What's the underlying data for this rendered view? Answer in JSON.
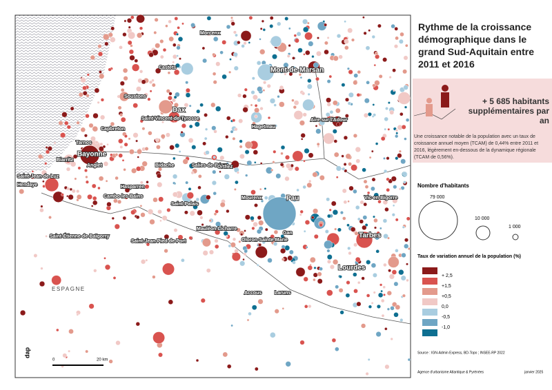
{
  "title": "Rythme de la croissance démographique dans le grand Sud-Aquitain entre 2011 et 2016",
  "highlight": "+ 5 685 habitants supplémentaires par an",
  "description": "Une croissance notable de la population avec un taux de croissance annuel moyen (TCAM) de 0,44% entre 2011 et 2016, légèrement en-dessous de la dynamique régionale (TCAM de 0,56%).",
  "size_legend": {
    "title": "Nombre d'habitants",
    "items": [
      "79 000",
      "10 000",
      "1 000"
    ]
  },
  "color_legend": {
    "title": "Taux de variation annuel de la population (%)",
    "items": [
      {
        "label": "+ 2,5",
        "color": "#8b1a1a"
      },
      {
        "label": "+1,5",
        "color": "#d9534f"
      },
      {
        "label": "+0,5",
        "color": "#e39a8c"
      },
      {
        "label": "0,0",
        "color": "#f1c9c6"
      },
      {
        "label": "-0,5",
        "color": "#a9cde0"
      },
      {
        "label": "-1,0",
        "color": "#6fa6c4"
      },
      {
        "label": null,
        "color": "#0e6f91"
      }
    ]
  },
  "places": [
    "Morcenx",
    "Castets",
    "Mont-de-Marsan",
    "Soustons",
    "Dax",
    "Saint-Vincent-de-Tyrosse",
    "Hagetmau",
    "Aire-sur-l'Adour",
    "Capbreton",
    "Tarnos",
    "Bayonne",
    "Biarritz",
    "Anglet",
    "Saint-Jean-de-Luz",
    "Hendaye",
    "Bidache",
    "Salies-de-Béarn",
    "Orthez",
    "Hasparren",
    "Cambo-les-Bains",
    "Mourenx",
    "Saint-Palais",
    "Vic-en-Bigorre",
    "Pau",
    "Mauléon-Licharre",
    "Gan",
    "Oloron-Sainte-Marie",
    "Saint-Étienne-de-Baïgorry",
    "Saint-Jean-Pied-de-Port",
    "Tarbes",
    "Lourdes",
    "Accous",
    "Laruns"
  ],
  "country": "ESPAGNE",
  "scale": [
    "0",
    "20 km"
  ],
  "logo": "dap",
  "source": "Source : IGN-Admin Express, BD-Topo ; INSEE-RP 2022",
  "agency": "Agence d'urbanisme Atlantique & Pyrénées",
  "date": "janvier 2025"
}
